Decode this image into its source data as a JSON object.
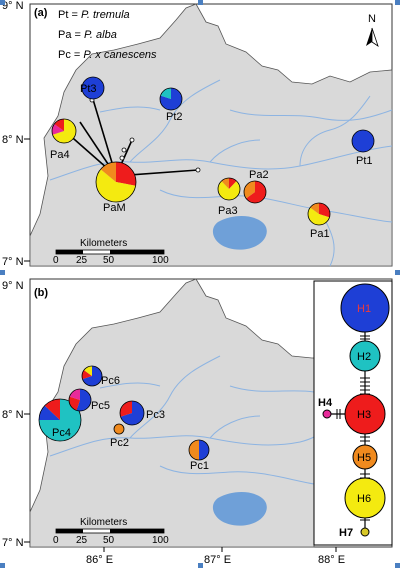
{
  "panel_a": {
    "label": "(a)",
    "legend": [
      {
        "abbr": "Pt = ",
        "species": "P. tremula"
      },
      {
        "abbr": "Pa = ",
        "species": "P. alba"
      },
      {
        "abbr": "Pc = ",
        "species": "P. x canescens"
      }
    ],
    "north_label": "N",
    "scale_title": "Kilometers",
    "scale_ticks": [
      "0",
      "25",
      "50",
      "100"
    ],
    "lat_labels": [
      "9° N",
      "8° N",
      "7° N"
    ],
    "sites": [
      {
        "id": "Pt3",
        "label": "Pt3"
      },
      {
        "id": "Pt2",
        "label": "Pt2"
      },
      {
        "id": "Pt1",
        "label": "Pt1"
      },
      {
        "id": "Pa4",
        "label": "Pa4"
      },
      {
        "id": "PaM",
        "label": "PaM"
      },
      {
        "id": "Pa3",
        "label": "Pa3"
      },
      {
        "id": "Pa2",
        "label": "Pa2"
      },
      {
        "id": "Pa1",
        "label": "Pa1"
      }
    ]
  },
  "panel_b": {
    "label": "(b)",
    "scale_title": "Kilometers",
    "scale_ticks": [
      "0",
      "25",
      "50",
      "100"
    ],
    "lat_labels": [
      "9° N",
      "8° N",
      "7° N"
    ],
    "lon_labels": [
      "86° E",
      "87° E",
      "88° E"
    ],
    "sites": [
      {
        "id": "Pc6",
        "label": "Pc6"
      },
      {
        "id": "Pc5",
        "label": "Pc5"
      },
      {
        "id": "Pc4",
        "label": "Pc4"
      },
      {
        "id": "Pc3",
        "label": "Pc3"
      },
      {
        "id": "Pc2",
        "label": "Pc2"
      },
      {
        "id": "Pc1",
        "label": "Pc1"
      }
    ]
  },
  "haplotype_network": {
    "nodes": [
      {
        "id": "H1",
        "label": "H1",
        "color": "#1e3fd6"
      },
      {
        "id": "H2",
        "label": "H2",
        "color": "#1fc2c2"
      },
      {
        "id": "H3",
        "label": "H3",
        "color": "#ee1c1c"
      },
      {
        "id": "H4",
        "label": "H4",
        "color": "#e82a9a"
      },
      {
        "id": "H5",
        "label": "H5",
        "color": "#f08a1e"
      },
      {
        "id": "H6",
        "label": "H6",
        "color": "#f4ea10"
      },
      {
        "id": "H7",
        "label": "H7",
        "color": "#d8c828"
      }
    ]
  },
  "colors": {
    "land": "#d9d9d9",
    "river": "#8db4e2",
    "lake": "#6fa0d8",
    "blue": "#1e3fd6",
    "cyan": "#1fc2c2",
    "red": "#ee1c1c",
    "magenta": "#e82a9a",
    "orange": "#f08a1e",
    "yellow": "#f4ea10"
  }
}
